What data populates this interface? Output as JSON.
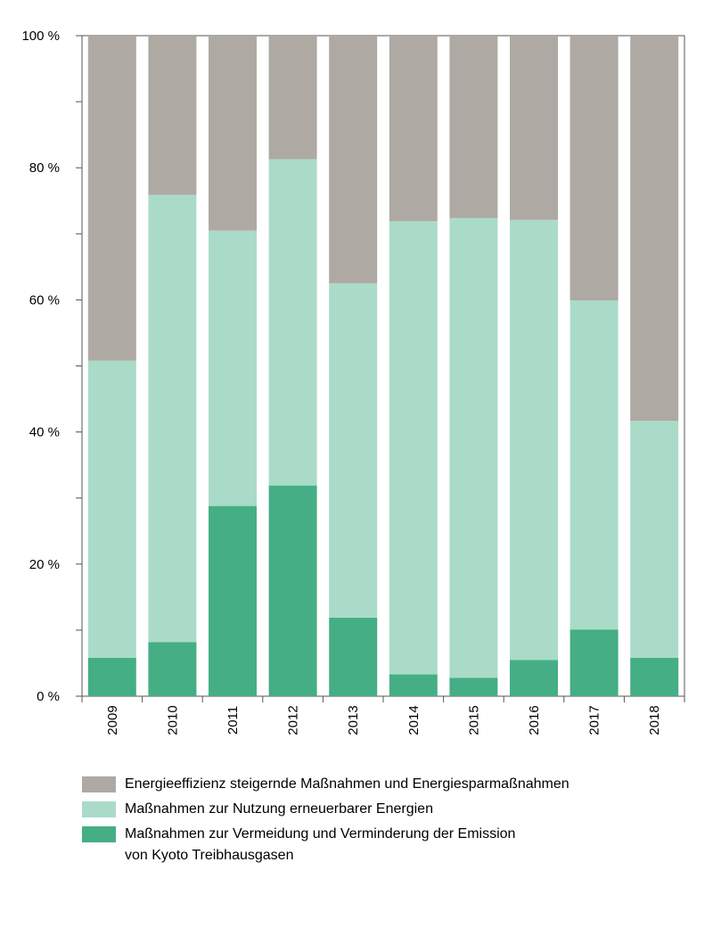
{
  "chart_data": {
    "type": "bar",
    "stacked": true,
    "categories": [
      "2009",
      "2010",
      "2011",
      "2012",
      "2013",
      "2014",
      "2015",
      "2016",
      "2017",
      "2018"
    ],
    "series": [
      {
        "name": "Maßnahmen zur Vermeidung und Verminderung der Emission",
        "name_line2": "von Kyoto Treibhausgasen",
        "color": "#45ae84",
        "values": [
          5.8,
          8.2,
          28.8,
          31.9,
          11.9,
          3.3,
          2.8,
          5.5,
          10.1,
          5.8
        ]
      },
      {
        "name": "Maßnahmen zur Nutzung erneuerbarer Energien",
        "color": "#aadbc9",
        "values": [
          45.0,
          67.7,
          41.7,
          49.4,
          50.6,
          68.6,
          69.6,
          66.6,
          49.8,
          35.9
        ]
      },
      {
        "name": "Energieeffizienz steigernde Maßnahmen und Energiesparmaßnahmen",
        "color": "#aeaaa3",
        "values": [
          49.2,
          24.1,
          29.5,
          18.7,
          37.5,
          28.1,
          27.6,
          27.9,
          40.1,
          58.3
        ]
      }
    ],
    "ylim": [
      0,
      100
    ],
    "yticks": [
      "0 %",
      "20 %",
      "40 %",
      "60 %",
      "80 %",
      "100 %"
    ],
    "ytick_values": [
      0,
      20,
      40,
      60,
      80,
      100
    ],
    "legend_position": "bottom-left",
    "title": "",
    "xlabel": "",
    "ylabel": ""
  }
}
